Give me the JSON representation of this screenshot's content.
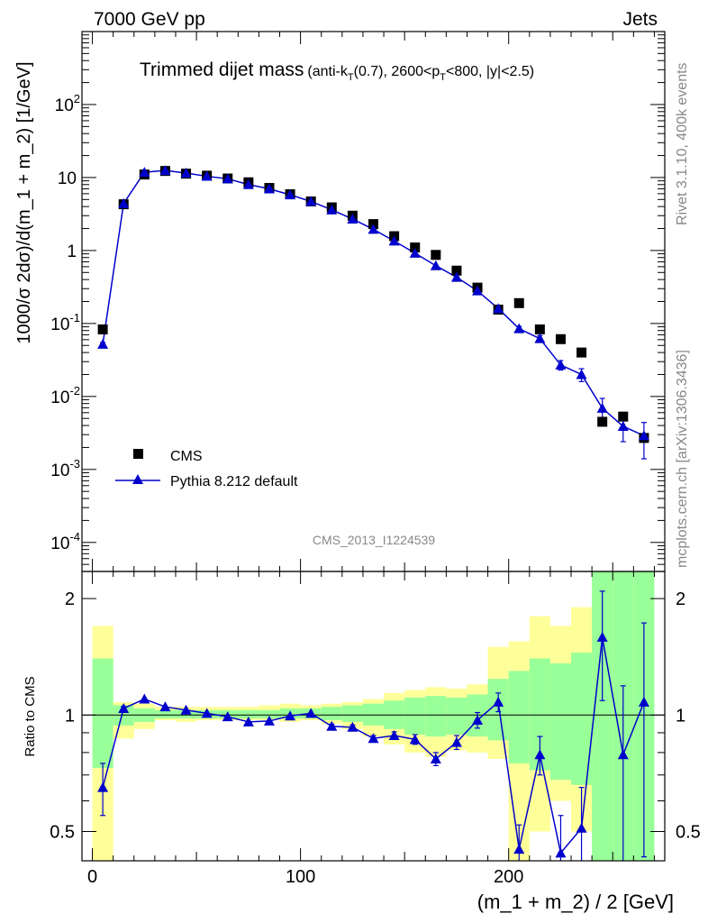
{
  "header": {
    "left": "7000 GeV pp",
    "right": "Jets"
  },
  "side": {
    "rivet": "Rivet 3.1.10,  400k events",
    "mcplots": "mcplots.cern.ch [arXiv:1306.3436]"
  },
  "chart_data": [
    {
      "type": "scatter",
      "title": "Trimmed dijet mass",
      "title_suffix": "(anti-k",
      "title_sub_t": "T",
      "title_mid": "(0.7), 2600<p",
      "title_sub_t2": "T",
      "title_end": "<800, |y|<2.5)",
      "watermark": "CMS_2013_I1224539",
      "ylabel": "1000/σ 2dσ)/d(m_1 + m_2) [1/GeV]",
      "yscale": "log",
      "ylim": [
        4e-05,
        1000
      ],
      "xlim": [
        -5,
        275
      ],
      "ytick_labels": [
        "10^-4",
        "10^-3",
        "10^-2",
        "10^-1",
        "1",
        "10",
        "10^2"
      ],
      "legend": {
        "position": "lower-left",
        "entries": [
          "CMS",
          "Pythia 8.212 default"
        ]
      },
      "series": [
        {
          "name": "CMS",
          "marker": "square",
          "color": "#000000",
          "x": [
            5,
            15,
            25,
            35,
            45,
            55,
            65,
            75,
            85,
            95,
            105,
            115,
            125,
            135,
            145,
            155,
            165,
            175,
            185,
            195,
            205,
            215,
            225,
            235,
            245,
            255,
            265
          ],
          "y": [
            0.083,
            4.3,
            11.0,
            12.3,
            11.3,
            10.6,
            9.7,
            8.6,
            7.2,
            5.9,
            4.7,
            3.9,
            3.0,
            2.3,
            1.57,
            1.1,
            0.87,
            0.53,
            0.31,
            0.155,
            0.19,
            0.083,
            0.061,
            0.04,
            0.0045,
            0.0053,
            0.0027
          ]
        },
        {
          "name": "Pythia 8.212 default",
          "marker": "triangle",
          "color": "#0000cc",
          "x": [
            5,
            15,
            25,
            35,
            45,
            55,
            65,
            75,
            85,
            95,
            105,
            115,
            125,
            135,
            145,
            155,
            165,
            175,
            185,
            195,
            205,
            215,
            225,
            235,
            245,
            255,
            265
          ],
          "y": [
            0.052,
            4.4,
            11.8,
            12.5,
            11.5,
            10.4,
            9.6,
            8.0,
            7.0,
            5.8,
            4.7,
            3.6,
            2.7,
            1.95,
            1.35,
            0.92,
            0.62,
            0.43,
            0.28,
            0.16,
            0.085,
            0.062,
            0.027,
            0.02,
            0.0069,
            0.0039,
            0.0029
          ],
          "yerr": [
            0.003,
            0.05,
            0.08,
            0.08,
            0.08,
            0.07,
            0.07,
            0.06,
            0.06,
            0.05,
            0.05,
            0.04,
            0.04,
            0.03,
            0.03,
            0.02,
            0.02,
            0.015,
            0.012,
            0.008,
            0.006,
            0.006,
            0.004,
            0.004,
            0.0025,
            0.0015,
            0.0015
          ]
        }
      ]
    },
    {
      "type": "scatter",
      "ylabel": "Ratio to CMS",
      "xlabel": "(m_1 + m_2) / 2 [GeV]",
      "yscale": "log",
      "ylim": [
        0.42,
        2.35
      ],
      "xlim": [
        -5,
        275
      ],
      "xticks": [
        0,
        100,
        200
      ],
      "ytick_labels": [
        "0.5",
        "1",
        "2"
      ],
      "bands": {
        "x_edges": [
          0,
          10,
          20,
          30,
          40,
          50,
          60,
          70,
          80,
          90,
          100,
          110,
          120,
          130,
          140,
          150,
          160,
          170,
          180,
          190,
          200,
          210,
          220,
          230,
          240,
          250,
          260,
          270
        ],
        "yellow_low": [
          0.3,
          0.87,
          0.92,
          0.97,
          0.96,
          0.97,
          0.97,
          0.97,
          0.97,
          0.96,
          0.97,
          0.95,
          0.92,
          0.88,
          0.84,
          0.8,
          0.78,
          0.81,
          0.8,
          0.77,
          0.4,
          0.5,
          0.6,
          0.5,
          0.3,
          0.3,
          0.3
        ],
        "yellow_high": [
          1.7,
          1.08,
          1.07,
          1.05,
          1.05,
          1.05,
          1.05,
          1.05,
          1.06,
          1.07,
          1.06,
          1.07,
          1.08,
          1.1,
          1.14,
          1.16,
          1.18,
          1.17,
          1.2,
          1.5,
          1.55,
          1.8,
          1.7,
          1.9,
          3.0,
          3.0,
          3.0
        ],
        "green_low": [
          0.73,
          0.94,
          0.96,
          0.98,
          0.98,
          0.98,
          0.98,
          0.98,
          0.98,
          0.98,
          0.98,
          0.97,
          0.96,
          0.94,
          0.92,
          0.89,
          0.88,
          0.89,
          0.88,
          0.86,
          0.75,
          0.72,
          0.68,
          0.66,
          0.3,
          0.3,
          0.3
        ],
        "green_high": [
          1.4,
          1.06,
          1.04,
          1.03,
          1.03,
          1.03,
          1.03,
          1.03,
          1.03,
          1.04,
          1.04,
          1.05,
          1.06,
          1.07,
          1.09,
          1.11,
          1.12,
          1.11,
          1.13,
          1.24,
          1.3,
          1.4,
          1.36,
          1.45,
          2.5,
          2.5,
          2.5
        ]
      },
      "series": [
        {
          "name": "Pythia 8.212 default",
          "color": "#0000cc",
          "x": [
            5,
            15,
            25,
            35,
            45,
            55,
            65,
            75,
            85,
            95,
            105,
            115,
            125,
            135,
            145,
            155,
            165,
            175,
            185,
            195,
            205,
            215,
            225,
            235,
            245,
            255,
            265
          ],
          "y": [
            0.65,
            1.04,
            1.1,
            1.05,
            1.03,
            1.01,
            0.99,
            0.96,
            0.965,
            0.995,
            1.01,
            0.935,
            0.93,
            0.87,
            0.885,
            0.865,
            0.77,
            0.85,
            0.97,
            1.08,
            0.45,
            0.79,
            0.44,
            0.51,
            1.59,
            0.79,
            1.08
          ],
          "yerr": [
            0.1,
            0.012,
            0.01,
            0.01,
            0.01,
            0.01,
            0.01,
            0.01,
            0.01,
            0.01,
            0.01,
            0.012,
            0.012,
            0.015,
            0.02,
            0.025,
            0.03,
            0.035,
            0.045,
            0.06,
            0.07,
            0.09,
            0.11,
            0.14,
            0.5,
            0.4,
            0.65
          ]
        }
      ]
    }
  ]
}
